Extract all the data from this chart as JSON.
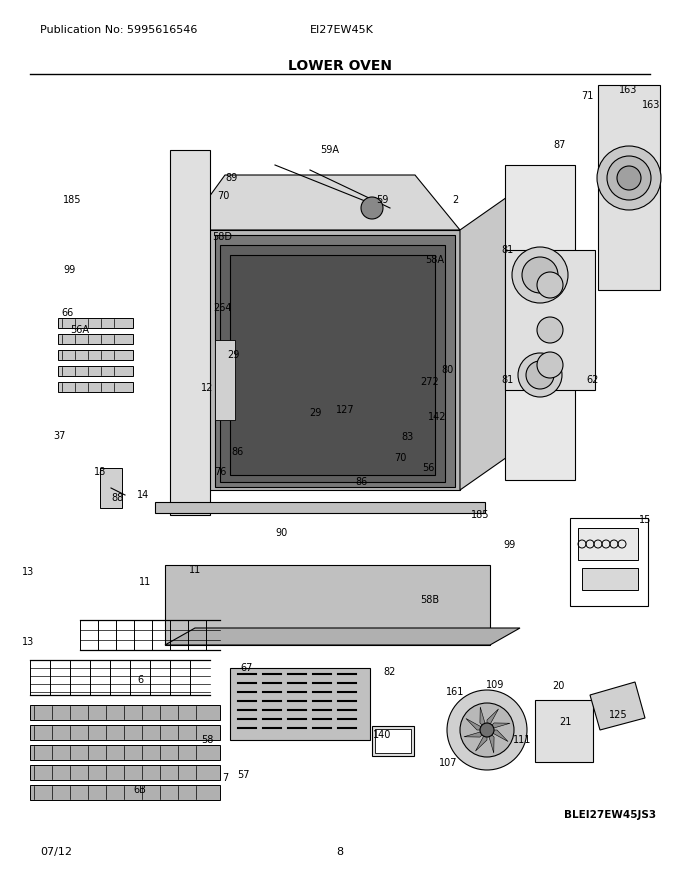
{
  "pub_no": "Publication No: 5995616546",
  "model": "EI27EW45K",
  "title": "LOWER OVEN",
  "date": "07/12",
  "page": "8",
  "part_id": "BLEI27EW45JS3",
  "bg_color": "#ffffff",
  "title_fontsize": 10,
  "label_fontsize": 7,
  "header_fontsize": 8,
  "labels": [
    [
      "2",
      455,
      200
    ],
    [
      "6",
      140,
      680
    ],
    [
      "6B",
      140,
      790
    ],
    [
      "7",
      225,
      778
    ],
    [
      "11",
      145,
      582
    ],
    [
      "11",
      195,
      570
    ],
    [
      "12",
      207,
      388
    ],
    [
      "13",
      28,
      572
    ],
    [
      "13",
      28,
      642
    ],
    [
      "14",
      143,
      495
    ],
    [
      "15",
      645,
      520
    ],
    [
      "18",
      100,
      472
    ],
    [
      "20",
      558,
      686
    ],
    [
      "21",
      565,
      722
    ],
    [
      "29",
      233,
      355
    ],
    [
      "29",
      315,
      413
    ],
    [
      "37",
      60,
      436
    ],
    [
      "56",
      428,
      468
    ],
    [
      "56A",
      80,
      330
    ],
    [
      "57",
      243,
      775
    ],
    [
      "58",
      207,
      740
    ],
    [
      "58A",
      435,
      260
    ],
    [
      "58B",
      430,
      600
    ],
    [
      "58D",
      222,
      237
    ],
    [
      "59",
      382,
      200
    ],
    [
      "59A",
      330,
      150
    ],
    [
      "62",
      593,
      380
    ],
    [
      "66",
      68,
      313
    ],
    [
      "67",
      247,
      668
    ],
    [
      "70",
      223,
      196
    ],
    [
      "70",
      400,
      458
    ],
    [
      "71",
      587,
      96
    ],
    [
      "76",
      220,
      472
    ],
    [
      "80",
      448,
      370
    ],
    [
      "81",
      508,
      250
    ],
    [
      "81",
      508,
      380
    ],
    [
      "82",
      390,
      672
    ],
    [
      "83",
      408,
      437
    ],
    [
      "86",
      237,
      452
    ],
    [
      "86",
      362,
      482
    ],
    [
      "87",
      560,
      145
    ],
    [
      "88",
      118,
      498
    ],
    [
      "89",
      232,
      178
    ],
    [
      "90",
      282,
      533
    ],
    [
      "99",
      70,
      270
    ],
    [
      "99",
      510,
      545
    ],
    [
      "107",
      448,
      763
    ],
    [
      "109",
      495,
      685
    ],
    [
      "111",
      522,
      740
    ],
    [
      "125",
      618,
      715
    ],
    [
      "127",
      345,
      410
    ],
    [
      "140",
      382,
      735
    ],
    [
      "142",
      437,
      417
    ],
    [
      "161",
      455,
      692
    ],
    [
      "163",
      628,
      90
    ],
    [
      "163",
      651,
      105
    ],
    [
      "185",
      72,
      200
    ],
    [
      "185",
      480,
      515
    ],
    [
      "264",
      223,
      308
    ],
    [
      "272",
      430,
      382
    ]
  ]
}
